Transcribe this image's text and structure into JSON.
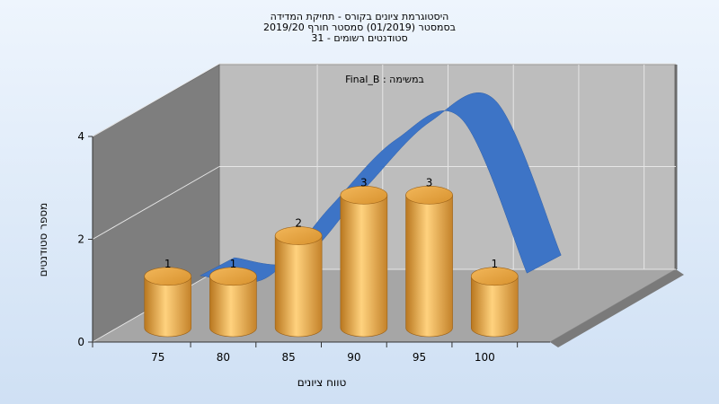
{
  "chart_data": {
    "type": "bar",
    "title_lines": [
      "היסטוגרמת ציונים בקורס - תחיקת המדידה",
      "בסמסטר  (01/2019)  סמסטר חורף 2019/20",
      "סטודנטים רשומים - 31"
    ],
    "annotation": "במשימה : Final_B",
    "xlabel": "טווח ציונים",
    "ylabel": "מספר סטודנטים",
    "x_ticks": [
      "75",
      "80",
      "85",
      "90",
      "95",
      "100"
    ],
    "y_ticks": [
      "0",
      "2",
      "4"
    ],
    "ylim": [
      0,
      4
    ],
    "xlim": [
      70,
      105
    ],
    "grid": true,
    "bars": {
      "x": [
        75,
        80,
        85,
        90,
        95,
        100
      ],
      "values": [
        1,
        1,
        2,
        3,
        3,
        1
      ],
      "color": "#e6a43a"
    },
    "curve": {
      "x": [
        75,
        80,
        85,
        90,
        95,
        100
      ],
      "values": [
        0.75,
        0.7,
        2.1,
        3.4,
        3.8,
        0.8
      ],
      "color": "#3d74c6"
    }
  },
  "colors": {
    "back_wall": "#bdbdbd",
    "left_wall": "#7e7e7e",
    "floor": "#a6a6a6",
    "grid": "#e6e6e6",
    "bar": "#e6a43a",
    "curve": "#3d74c6"
  }
}
